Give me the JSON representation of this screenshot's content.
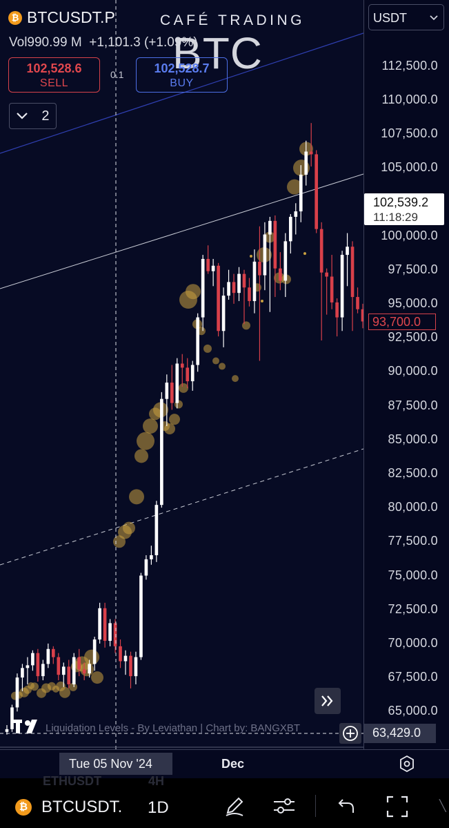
{
  "header": {
    "symbol": "BTCUSDT.P",
    "watermark_title": "CAFÉ TRADING",
    "watermark_big": "BTC",
    "volume_label": "Vol",
    "volume_value": "990.99 M",
    "change": "+1,101.3 (+1.09%)",
    "currency": "USDT"
  },
  "trade": {
    "sell_price": "102,528.6",
    "sell_label": "SELL",
    "spread": "0.1",
    "buy_price": "102,528.7",
    "buy_label": "BUY"
  },
  "indicators": {
    "count": "2"
  },
  "price_axis": {
    "ticks": [
      "112,500.0",
      "110,000.0",
      "107,500.0",
      "105,000.0",
      "100,000.0",
      "97,500.0",
      "95,000.0",
      "92,500.0",
      "90,000.0",
      "87,500.0",
      "85,000.0",
      "82,500.0",
      "80,000.0",
      "77,500.0",
      "75,000.0",
      "72,500.0",
      "70,000.0",
      "67,500.0",
      "65,000.0"
    ],
    "current_price": "102,539.2",
    "countdown": "11:18:29",
    "last_price": "93,700.0",
    "crosshair_price": "63,429.0"
  },
  "time_axis": {
    "crosshair_date": "Tue 05 Nov '24",
    "label_dec": "Dec"
  },
  "footer_text": {
    "attribution": "Liquidation Levels - By Leviathan | Chart by: BANGXBT",
    "ghost_symbol": "ETHUSDT",
    "ghost_tf": "4H"
  },
  "toolbar": {
    "symbol": "BTCUSDT.",
    "timeframe": "1D"
  },
  "colors": {
    "up": "#ffffff",
    "down": "#d9404a",
    "bubble": "#c8a040",
    "sell": "#e0474d",
    "buy": "#4d6fe6",
    "background": "#070b24"
  },
  "icons": [
    "bitcoin-icon",
    "chevron-down-icon",
    "expand-icon",
    "crosshair-plus-icon",
    "settings-hexagon-icon",
    "pencil-icon",
    "sliders-icon",
    "undo-icon",
    "fullscreen-icon"
  ],
  "chart_data": {
    "type": "candlestick",
    "ylim": [
      62000,
      114000
    ],
    "ohlc": [
      [
        63500,
        64000,
        63300,
        63700
      ],
      [
        63700,
        65500,
        63500,
        65300
      ],
      [
        65300,
        67800,
        65000,
        67500
      ],
      [
        67500,
        68500,
        66500,
        68200
      ],
      [
        68200,
        69000,
        67000,
        68400
      ],
      [
        68400,
        69500,
        68000,
        69300
      ],
      [
        69300,
        69600,
        67200,
        67600
      ],
      [
        67600,
        68800,
        67300,
        68500
      ],
      [
        68500,
        70000,
        68200,
        69600
      ],
      [
        69600,
        69800,
        68500,
        69000
      ],
      [
        69000,
        69300,
        67300,
        67700
      ],
      [
        67700,
        68600,
        66800,
        68300
      ],
      [
        68300,
        68800,
        66700,
        67000
      ],
      [
        67000,
        69300,
        66800,
        69000
      ],
      [
        69000,
        69600,
        67600,
        68100
      ],
      [
        68100,
        68600,
        67300,
        67800
      ],
      [
        67800,
        68800,
        67500,
        68500
      ],
      [
        68500,
        70500,
        68000,
        70300
      ],
      [
        70300,
        73000,
        70000,
        72600
      ],
      [
        72600,
        73000,
        69700,
        70200
      ],
      [
        70200,
        71800,
        69800,
        71500
      ],
      [
        71500,
        71800,
        69300,
        69800
      ],
      [
        69800,
        70300,
        68200,
        68700
      ],
      [
        68700,
        69500,
        67700,
        69100
      ],
      [
        69100,
        69400,
        66700,
        67600
      ],
      [
        67600,
        69400,
        67000,
        69000
      ],
      [
        69000,
        75200,
        68800,
        75000
      ],
      [
        75000,
        76500,
        74700,
        76200
      ],
      [
        76200,
        77200,
        75800,
        76500
      ],
      [
        76500,
        80500,
        76000,
        80200
      ],
      [
        80200,
        88500,
        80000,
        88000
      ],
      [
        88000,
        89800,
        86000,
        89200
      ],
      [
        89200,
        90500,
        87200,
        87700
      ],
      [
        87700,
        91000,
        87300,
        90600
      ],
      [
        90600,
        91300,
        88900,
        90300
      ],
      [
        90300,
        91000,
        88800,
        89300
      ],
      [
        89300,
        90800,
        88600,
        90500
      ],
      [
        90500,
        94300,
        90000,
        94000
      ],
      [
        94000,
        98600,
        93000,
        98300
      ],
      [
        98300,
        99300,
        97200,
        97400
      ],
      [
        97400,
        98300,
        96300,
        97800
      ],
      [
        97800,
        98000,
        92600,
        93000
      ],
      [
        93000,
        96200,
        91800,
        95600
      ],
      [
        95600,
        97500,
        95300,
        96600
      ],
      [
        96600,
        97200,
        95000,
        95800
      ],
      [
        95800,
        97700,
        95200,
        97200
      ],
      [
        97200,
        97500,
        93500,
        96200
      ],
      [
        96200,
        96900,
        94800,
        95200
      ],
      [
        95200,
        99000,
        94300,
        98100
      ],
      [
        98100,
        100700,
        90800,
        97100
      ],
      [
        97100,
        101000,
        96000,
        100100
      ],
      [
        100100,
        101400,
        94400,
        101100
      ],
      [
        101100,
        101500,
        95500,
        97600
      ],
      [
        97600,
        98800,
        96000,
        96700
      ],
      [
        96700,
        100200,
        95500,
        99600
      ],
      [
        99600,
        101600,
        98700,
        101400
      ],
      [
        101400,
        102400,
        100100,
        101800
      ],
      [
        101800,
        105200,
        101000,
        104500
      ],
      [
        104500,
        107000,
        103700,
        106200
      ],
      [
        106200,
        108300,
        105100,
        106000
      ],
      [
        106000,
        106300,
        100200,
        100500
      ],
      [
        100500,
        101000,
        92300,
        97300
      ],
      [
        97300,
        97600,
        94200,
        97000
      ],
      [
        97000,
        98600,
        94600,
        95100
      ],
      [
        95100,
        95400,
        92600,
        94000
      ],
      [
        94000,
        98900,
        93000,
        98600
      ],
      [
        98600,
        100200,
        96300,
        99200
      ],
      [
        99200,
        99600,
        93000,
        95500
      ],
      [
        95500,
        96200,
        94300,
        94600
      ],
      [
        94600,
        95000,
        93200,
        93700
      ]
    ],
    "bubbles": [
      [
        22,
        1150,
        6
      ],
      [
        28,
        1200,
        5
      ],
      [
        35,
        1400,
        7
      ],
      [
        40,
        1600,
        6
      ],
      [
        45,
        1900,
        5
      ],
      [
        50,
        1830,
        6
      ],
      [
        60,
        1350,
        7
      ],
      [
        67,
        1720,
        7
      ],
      [
        75,
        1860,
        6
      ],
      [
        81,
        1650,
        5
      ],
      [
        88,
        1850,
        7
      ],
      [
        94,
        1400,
        8
      ],
      [
        106,
        1800,
        6
      ],
      [
        111,
        3300,
        8
      ],
      [
        119,
        3500,
        11
      ],
      [
        126,
        3100,
        10
      ],
      [
        133,
        4000,
        11
      ],
      [
        141,
        2500,
        9
      ],
      [
        173,
        12500,
        9
      ],
      [
        181,
        13200,
        10
      ],
      [
        187,
        13500,
        9
      ],
      [
        198,
        15800,
        11
      ],
      [
        205,
        18800,
        10
      ],
      [
        211,
        19900,
        13
      ],
      [
        218,
        21000,
        11
      ],
      [
        225,
        21900,
        9
      ],
      [
        233,
        22200,
        11
      ],
      [
        239,
        21000,
        7
      ],
      [
        246,
        20800,
        8
      ],
      [
        253,
        21500,
        8
      ],
      [
        259,
        22600,
        6
      ],
      [
        266,
        23800,
        7
      ],
      [
        273,
        30300,
        13
      ],
      [
        280,
        30900,
        11
      ],
      [
        286,
        28500,
        7
      ],
      [
        292,
        28000,
        6
      ],
      [
        301,
        26700,
        6
      ],
      [
        313,
        25800,
        5
      ],
      [
        322,
        25400,
        5
      ],
      [
        341,
        24500,
        5
      ],
      [
        357,
        28400,
        6
      ],
      [
        373,
        31200,
        6
      ],
      [
        383,
        33600,
        11
      ],
      [
        391,
        34900,
        8
      ],
      [
        405,
        31900,
        8
      ],
      [
        415,
        31800,
        7
      ],
      [
        427,
        38600,
        11
      ],
      [
        437,
        40000,
        12
      ],
      [
        444,
        41400,
        10
      ]
    ],
    "dots": [
      [
        364,
        33500
      ],
      [
        380,
        30200
      ],
      [
        442,
        33700
      ]
    ]
  }
}
